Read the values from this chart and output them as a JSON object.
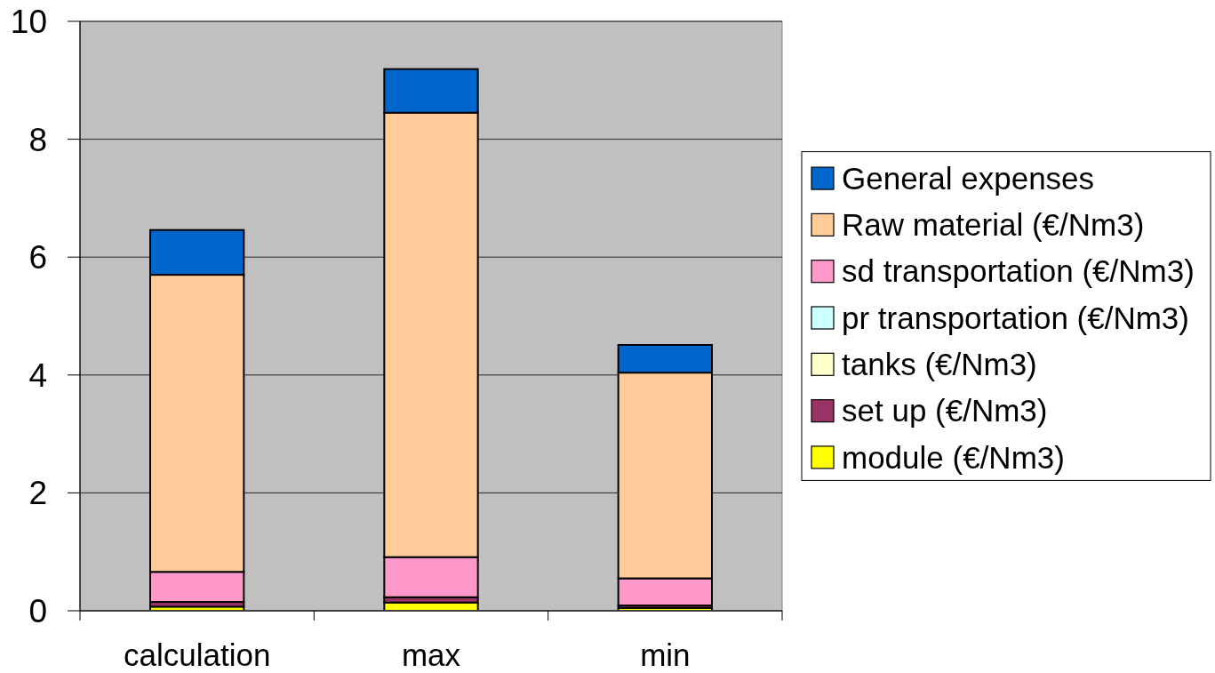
{
  "chart_data": {
    "type": "bar",
    "stacked": true,
    "categories": [
      "calculation",
      "max",
      "min"
    ],
    "series": [
      {
        "name": "module (€/Nm3)",
        "color": "#ffff00",
        "values": [
          0.07,
          0.14,
          0.05
        ]
      },
      {
        "name": "set up (€/Nm3)",
        "color": "#993366",
        "values": [
          0.08,
          0.09,
          0.04
        ]
      },
      {
        "name": "tanks (€/Nm3)",
        "color": "#ffffcc",
        "values": [
          0,
          0,
          0
        ]
      },
      {
        "name": "pr transportation (€/Nm3)",
        "color": "#ccffff",
        "values": [
          0,
          0,
          0
        ]
      },
      {
        "name": "sd transportation (€/Nm3)",
        "color": "#ff99cc",
        "values": [
          0.51,
          0.68,
          0.46
        ]
      },
      {
        "name": "Raw material (€/Nm3)",
        "color": "#ffcc99",
        "values": [
          5.04,
          7.54,
          3.49
        ]
      },
      {
        "name": "General expenses",
        "color": "#0066cc",
        "values": [
          0.76,
          0.74,
          0.47
        ]
      }
    ],
    "ylim": [
      0,
      10
    ],
    "yticks": [
      0,
      2,
      4,
      6,
      8,
      10
    ],
    "grid": "y",
    "legend": "right"
  }
}
